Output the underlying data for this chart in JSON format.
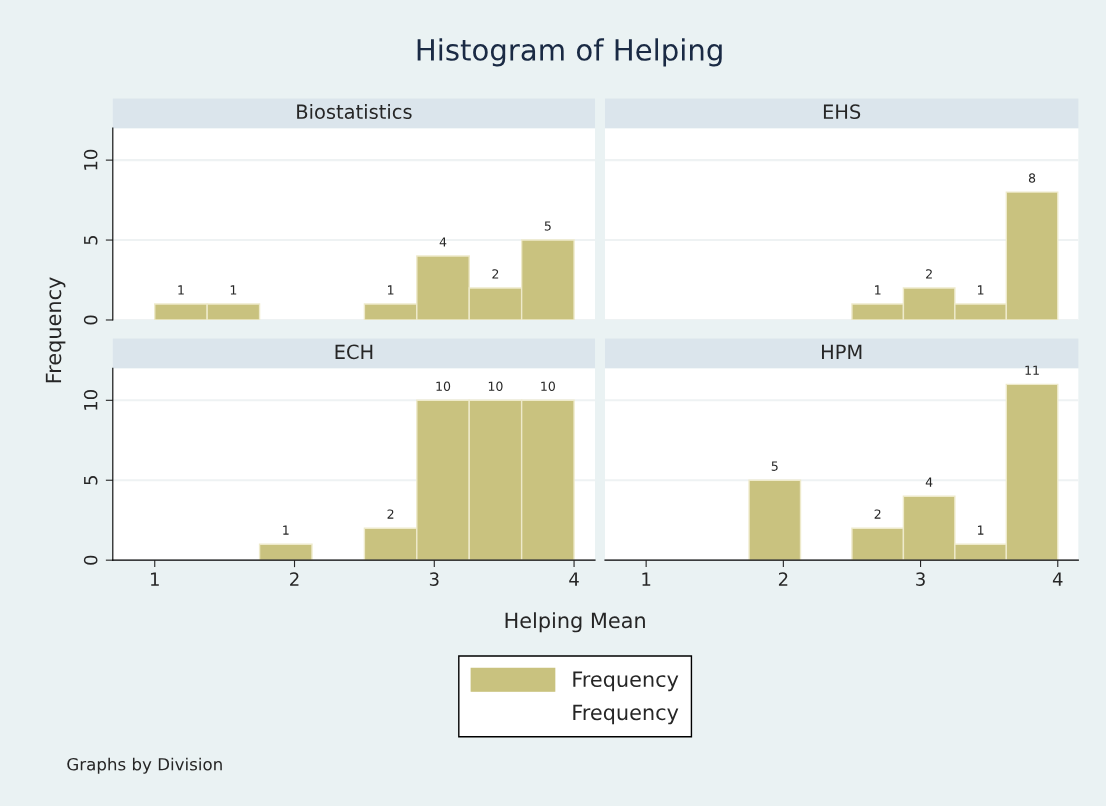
{
  "chart_data": [
    {
      "type": "histogram",
      "title": "Histogram of Helping",
      "subtitle": "Biostatistics",
      "xlabel": "Helping Mean",
      "ylabel": "Frequency",
      "annotations": [
        "Frequency",
        "Graphs by Division"
      ],
      "legend": "bottom",
      "bins": [
        1,
        1.375,
        1.75,
        2.125,
        2.5,
        2.875,
        3.25,
        3.625,
        4
      ],
      "series": [
        {
          "name": "Frequency",
          "color": "#c9c27f",
          "values": [
            1,
            1,
            0,
            0,
            1,
            4,
            2,
            5
          ],
          "value_labels": [
            "1",
            "1",
            null,
            null,
            "1",
            "4",
            "2",
            "5"
          ]
        }
      ],
      "xlim": [
        0.7,
        4.15
      ],
      "ylim": [
        0,
        12
      ],
      "xticks": [
        1,
        2,
        3,
        4
      ],
      "yticks": [
        0,
        5,
        10
      ],
      "grid": "y",
      "tick_labels": "y"
    },
    {
      "type": "histogram",
      "subtitle": "EHS",
      "bins": [
        1,
        1.375,
        1.75,
        2.125,
        2.5,
        2.875,
        3.25,
        3.625,
        4
      ],
      "series": [
        {
          "color": "#c9c27f",
          "values": [
            0,
            0,
            0,
            0,
            1,
            2,
            1,
            8
          ],
          "value_labels": [
            null,
            null,
            null,
            null,
            "1",
            "2",
            "1",
            "8"
          ]
        }
      ],
      "xlim": [
        0.7,
        4.15
      ],
      "ylim": [
        0,
        12
      ],
      "xticks": [
        1,
        2,
        3,
        4
      ],
      "yticks": [
        0,
        5,
        10
      ],
      "grid": "y",
      "tick_labels": false
    },
    {
      "type": "histogram",
      "subtitle": "ECH",
      "bins": [
        1,
        1.375,
        1.75,
        2.125,
        2.5,
        2.875,
        3.25,
        3.625,
        4
      ],
      "series": [
        {
          "color": "#c9c27f",
          "values": [
            0,
            0,
            1,
            0,
            2,
            10,
            10,
            10
          ],
          "value_labels": [
            null,
            null,
            "1",
            null,
            "2",
            "10",
            "10",
            "10"
          ]
        }
      ],
      "xlim": [
        0.7,
        4.15
      ],
      "ylim": [
        0,
        12
      ],
      "xticks": [
        1,
        2,
        3,
        4
      ],
      "yticks": [
        0,
        5,
        10
      ],
      "grid": "y"
    },
    {
      "type": "histogram",
      "subtitle": "HPM",
      "bins": [
        1,
        1.375,
        1.75,
        2.125,
        2.5,
        2.875,
        3.25,
        3.625,
        4
      ],
      "series": [
        {
          "color": "#c9c27f",
          "values": [
            0,
            0,
            5,
            0,
            2,
            4,
            1,
            11
          ],
          "value_labels": [
            null,
            null,
            "5",
            null,
            "2",
            "4",
            "1",
            "11"
          ]
        }
      ],
      "xlim": [
        0.7,
        4.15
      ],
      "ylim": [
        0,
        12
      ],
      "xticks": [
        1,
        2,
        3,
        4
      ],
      "yticks": [
        0,
        5,
        10
      ],
      "grid": "y",
      "tick_labels": "x"
    }
  ]
}
